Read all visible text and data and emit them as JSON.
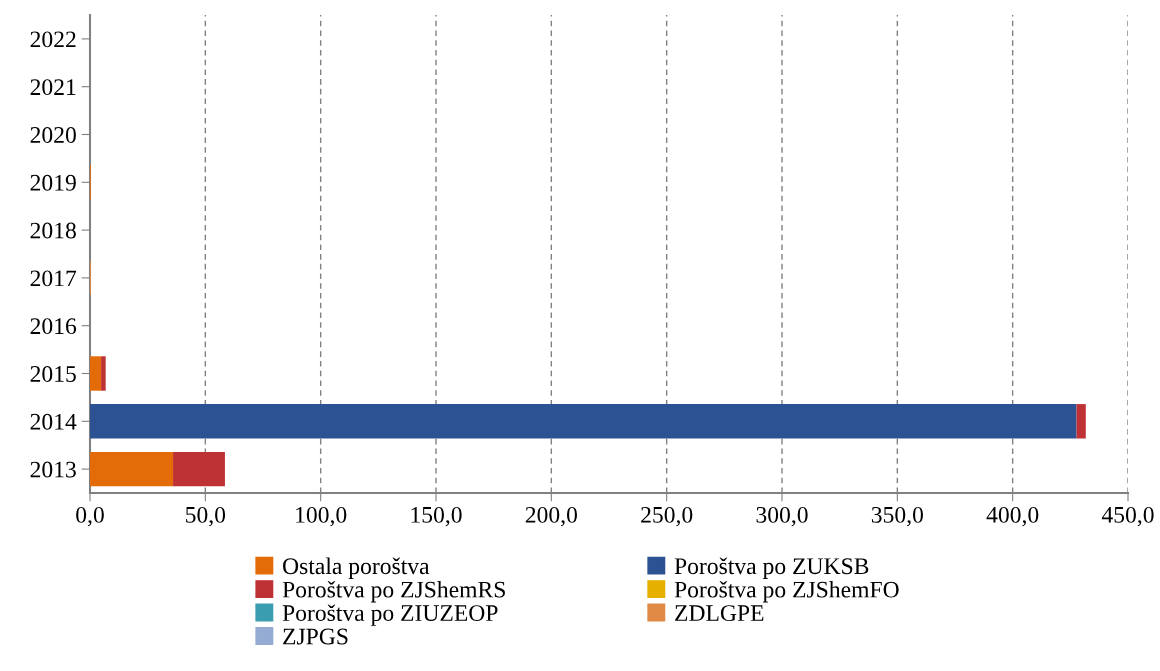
{
  "chart_data": {
    "type": "bar",
    "orientation": "horizontal",
    "stacked": true,
    "categories": [
      "2022",
      "2021",
      "2020",
      "2019",
      "2018",
      "2017",
      "2016",
      "2015",
      "2014",
      "2013"
    ],
    "series": [
      {
        "name": "Ostala poroštva",
        "color": "#e36c09",
        "values": [
          0,
          0,
          0,
          0.4,
          0,
          0,
          0,
          4.8,
          0,
          36.0
        ]
      },
      {
        "name": "Poroštva po ZUKSB",
        "color": "#2c5294",
        "values": [
          0,
          0,
          0,
          0,
          0,
          0,
          0,
          0,
          427.7,
          0
        ]
      },
      {
        "name": "Poroštva po ZJShemRS",
        "color": "#be3236",
        "values": [
          0,
          0,
          0,
          0,
          0,
          0,
          0,
          2.0,
          4.0,
          22.5
        ]
      },
      {
        "name": "Poroštva po ZJShemFO",
        "color": "#e6b000",
        "values": [
          0,
          0,
          0,
          0,
          0,
          0,
          0,
          0,
          0,
          0
        ]
      },
      {
        "name": "Poroštva po ZIUZEOP",
        "color": "#3b9db0",
        "values": [
          0,
          0,
          0,
          0,
          0,
          0,
          0,
          0,
          0,
          0
        ]
      },
      {
        "name": "ZDLGPE",
        "color": "#e08a45",
        "values": [
          0,
          0,
          0,
          0,
          0,
          0.4,
          0,
          0,
          0,
          0
        ]
      },
      {
        "name": "ZJPGS",
        "color": "#94abd2",
        "values": [
          0,
          0,
          0,
          0,
          0,
          0,
          0,
          0,
          0,
          0
        ]
      }
    ],
    "xlim": [
      0,
      450
    ],
    "xticks": [
      {
        "value": 0,
        "label": "0,0"
      },
      {
        "value": 50,
        "label": "50,0"
      },
      {
        "value": 100,
        "label": "100,0"
      },
      {
        "value": 150,
        "label": "150,0"
      },
      {
        "value": 200,
        "label": "200,0"
      },
      {
        "value": 250,
        "label": "250,0"
      },
      {
        "value": 300,
        "label": "300,0"
      },
      {
        "value": 350,
        "label": "350,0"
      },
      {
        "value": 400,
        "label": "400,0"
      },
      {
        "value": 450,
        "label": "450,0"
      }
    ],
    "grid": "x",
    "legend": "bottom"
  }
}
